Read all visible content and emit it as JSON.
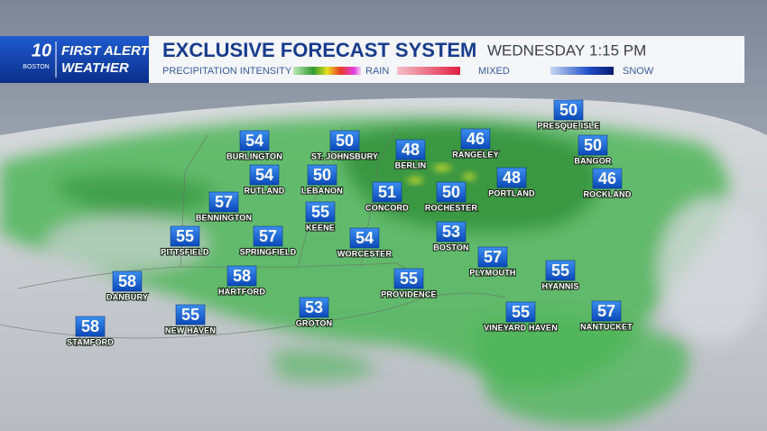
{
  "header": {
    "logo": {
      "channel": "10",
      "station": "BOSTON",
      "brand_line1": "FIRST ALERT",
      "brand_line2": "WEATHER"
    },
    "title": "EXCLUSIVE FORECAST SYSTEM",
    "day": "WEDNESDAY",
    "time": "1:15 PM"
  },
  "legend": {
    "label": "PRECIPITATION INTENSITY",
    "rain": "RAIN",
    "mixed": "MIXED",
    "snow": "SNOW"
  },
  "cities": [
    {
      "name": "PRESQUE ISLE",
      "temp": 50
    },
    {
      "name": "BURLINGTON",
      "temp": 54
    },
    {
      "name": "ST. JOHNSBURY",
      "temp": 50
    },
    {
      "name": "BERLIN",
      "temp": 48
    },
    {
      "name": "RANGELEY",
      "temp": 46
    },
    {
      "name": "BANGOR",
      "temp": 50
    },
    {
      "name": "RUTLAND",
      "temp": 54
    },
    {
      "name": "LEBANON",
      "temp": 50
    },
    {
      "name": "PORTLAND",
      "temp": 48
    },
    {
      "name": "ROCKLAND",
      "temp": 46
    },
    {
      "name": "BENNINGTON",
      "temp": 57
    },
    {
      "name": "CONCORD",
      "temp": 51
    },
    {
      "name": "ROCHESTER",
      "temp": 50
    },
    {
      "name": "KEENE",
      "temp": 55
    },
    {
      "name": "PITTSFIELD",
      "temp": 55
    },
    {
      "name": "SPRINGFIELD",
      "temp": 57
    },
    {
      "name": "WORCESTER",
      "temp": 54
    },
    {
      "name": "BOSTON",
      "temp": 53
    },
    {
      "name": "PLYMOUTH",
      "temp": 57
    },
    {
      "name": "HYANNIS",
      "temp": 55
    },
    {
      "name": "DANBURY",
      "temp": 58
    },
    {
      "name": "HARTFORD",
      "temp": 58
    },
    {
      "name": "PROVIDENCE",
      "temp": 55
    },
    {
      "name": "GROTON",
      "temp": 53
    },
    {
      "name": "NEW HAVEN",
      "temp": 55
    },
    {
      "name": "VINEYARD HAVEN",
      "temp": 55
    },
    {
      "name": "NANTUCKET",
      "temp": 57
    },
    {
      "name": "STAMFORD",
      "temp": 58
    }
  ]
}
